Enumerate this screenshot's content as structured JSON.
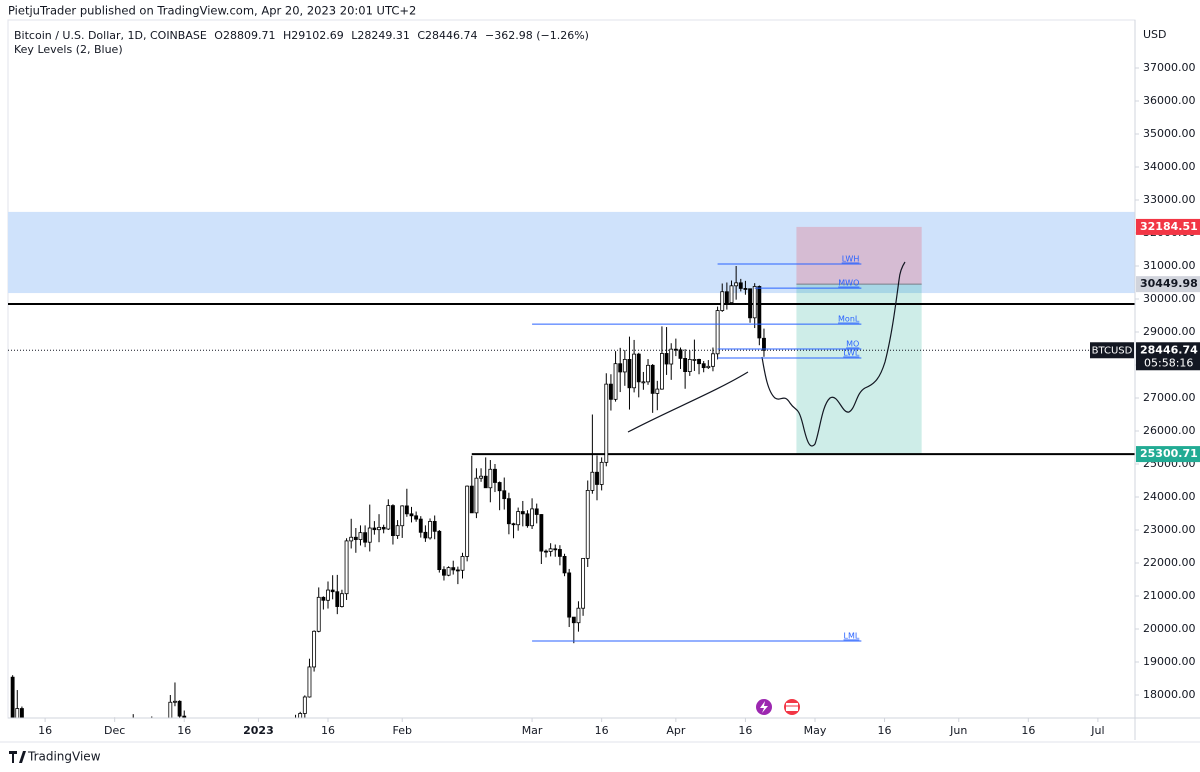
{
  "header": "PietjuTrader published on TradingView.com, Apr 20, 2023 20:01 UTC+2",
  "footer": "TradingView",
  "chart_data": {
    "type": "candlestick",
    "symbol": "Bitcoin / U.S. Dollar, 1D, COINBASE",
    "legend_values": [
      "O28809.71",
      "H29102.69",
      "L28249.31",
      "C28446.74",
      "−362.98 (−1.26%)"
    ],
    "indicator": "Key Levels (2, Blue)",
    "currency": "USD",
    "ticker": "BTCUSD",
    "countdown": "05:58:16",
    "up_color": "#ffffff",
    "down_color": "#000000",
    "wick_color": "#000000",
    "x": [
      "2022-11-09",
      "2022-11-10",
      "2022-11-11",
      "2022-11-12",
      "2022-11-13",
      "2022-11-14",
      "2022-11-15",
      "2022-11-16",
      "2022-11-17",
      "2022-11-18",
      "2022-11-19",
      "2022-11-20",
      "2022-11-21",
      "2022-11-22",
      "2022-11-23",
      "2022-11-24",
      "2022-11-25",
      "2022-11-26",
      "2022-11-27",
      "2022-11-28",
      "2022-11-29",
      "2022-11-30",
      "2022-12-01",
      "2022-12-02",
      "2022-12-03",
      "2022-12-04",
      "2022-12-05",
      "2022-12-06",
      "2022-12-07",
      "2022-12-08",
      "2022-12-09",
      "2022-12-10",
      "2022-12-11",
      "2022-12-12",
      "2022-12-13",
      "2022-12-14",
      "2022-12-15",
      "2022-12-16",
      "2022-12-17",
      "2022-12-18",
      "2022-12-19",
      "2022-12-20",
      "2022-12-21",
      "2022-12-22",
      "2022-12-23",
      "2022-12-24",
      "2022-12-25",
      "2022-12-26",
      "2022-12-27",
      "2022-12-28",
      "2022-12-29",
      "2022-12-30",
      "2022-12-31",
      "2023-01-01",
      "2023-01-02",
      "2023-01-03",
      "2023-01-04",
      "2023-01-05",
      "2023-01-06",
      "2023-01-07",
      "2023-01-08",
      "2023-01-09",
      "2023-01-10",
      "2023-01-11",
      "2023-01-12",
      "2023-01-13",
      "2023-01-14",
      "2023-01-15",
      "2023-01-16",
      "2023-01-17",
      "2023-01-18",
      "2023-01-19",
      "2023-01-20",
      "2023-01-21",
      "2023-01-22",
      "2023-01-23",
      "2023-01-24",
      "2023-01-25",
      "2023-01-26",
      "2023-01-27",
      "2023-01-28",
      "2023-01-29",
      "2023-01-30",
      "2023-01-31",
      "2023-02-01",
      "2023-02-02",
      "2023-02-03",
      "2023-02-04",
      "2023-02-05",
      "2023-02-06",
      "2023-02-07",
      "2023-02-08",
      "2023-02-09",
      "2023-02-10",
      "2023-02-11",
      "2023-02-12",
      "2023-02-13",
      "2023-02-14",
      "2023-02-15",
      "2023-02-16",
      "2023-02-17",
      "2023-02-18",
      "2023-02-19",
      "2023-02-20",
      "2023-02-21",
      "2023-02-22",
      "2023-02-23",
      "2023-02-24",
      "2023-02-25",
      "2023-02-26",
      "2023-02-27",
      "2023-02-28",
      "2023-03-01",
      "2023-03-02",
      "2023-03-03",
      "2023-03-04",
      "2023-03-05",
      "2023-03-06",
      "2023-03-07",
      "2023-03-08",
      "2023-03-09",
      "2023-03-10",
      "2023-03-11",
      "2023-03-12",
      "2023-03-13",
      "2023-03-14",
      "2023-03-15",
      "2023-03-16",
      "2023-03-17",
      "2023-03-18",
      "2023-03-19",
      "2023-03-20",
      "2023-03-21",
      "2023-03-22",
      "2023-03-23",
      "2023-03-24",
      "2023-03-25",
      "2023-03-26",
      "2023-03-27",
      "2023-03-28",
      "2023-03-29",
      "2023-03-30",
      "2023-03-31",
      "2023-04-01",
      "2023-04-02",
      "2023-04-03",
      "2023-04-04",
      "2023-04-05",
      "2023-04-06",
      "2023-04-07",
      "2023-04-08",
      "2023-04-09",
      "2023-04-10",
      "2023-04-11",
      "2023-04-12",
      "2023-04-13",
      "2023-04-14",
      "2023-04-15",
      "2023-04-16",
      "2023-04-17",
      "2023-04-18",
      "2023-04-19",
      "2023-04-20"
    ],
    "open": [
      18540,
      15880,
      17590,
      17070,
      16810,
      16330,
      16620,
      16900,
      16660,
      16690,
      16700,
      16700,
      16280,
      15780,
      16230,
      16600,
      16600,
      16520,
      16460,
      16440,
      16220,
      16440,
      17160,
      16980,
      17090,
      16890,
      17110,
      16970,
      17090,
      16840,
      17220,
      17130,
      17130,
      17090,
      17210,
      17780,
      17810,
      17360,
      16630,
      16780,
      16740,
      16440,
      16900,
      16820,
      16820,
      16780,
      16840,
      16830,
      16920,
      16710,
      16550,
      16630,
      16600,
      16530,
      16610,
      16670,
      16670,
      16850,
      16830,
      16950,
      16940,
      17120,
      17180,
      17440,
      17940,
      18850,
      19930,
      20960,
      20870,
      21180,
      21130,
      20680,
      21070,
      22670,
      22780,
      22710,
      22920,
      22630,
      23060,
      23010,
      23080,
      23030,
      23740,
      22830,
      23130,
      23730,
      23490,
      23430,
      23330,
      22930,
      22760,
      23260,
      22960,
      21800,
      21630,
      21860,
      21790,
      21780,
      22200,
      24330,
      23520,
      24570,
      24630,
      24280,
      24840,
      24440,
      24190,
      23950,
      23190,
      23160,
      23560,
      23490,
      23130,
      23640,
      23470,
      22360,
      22350,
      22430,
      22410,
      22200,
      21700,
      20360,
      20190,
      20630,
      22140,
      24200,
      24750,
      24380,
      25050,
      27420,
      26960,
      28040,
      27790,
      28170,
      27310,
      28330,
      27490,
      27490,
      27990,
      27140,
      27270,
      28350,
      28030,
      28480,
      28460,
      28200,
      27800,
      28170,
      28170,
      28040,
      27920,
      27960,
      28340,
      29650,
      30220,
      29890,
      30400,
      30490,
      30320,
      30310,
      29430,
      30380,
      28809.71
    ],
    "high": [
      18600,
      18150,
      17650,
      17090,
      16950,
      17190,
      17130,
      17000,
      16790,
      17000,
      16790,
      16740,
      16300,
      16280,
      16700,
      16810,
      16610,
      16700,
      16590,
      16480,
      16530,
      17250,
      17320,
      17110,
      17160,
      17200,
      17420,
      17110,
      17140,
      17300,
      17350,
      17220,
      17270,
      17240,
      18000,
      18380,
      17840,
      17530,
      16800,
      16860,
      16810,
      17030,
      16900,
      16860,
      16940,
      16860,
      16860,
      16940,
      16970,
      16780,
      16660,
      16640,
      16650,
      16630,
      16760,
      16780,
      16990,
      16880,
      17000,
      16970,
      17170,
      17400,
      17490,
      17990,
      19100,
      19960,
      21260,
      20990,
      21440,
      21630,
      21640,
      21190,
      22750,
      23340,
      23060,
      23140,
      23140,
      23770,
      23270,
      23480,
      23160,
      23930,
      23780,
      23300,
      23750,
      24250,
      23700,
      23560,
      23420,
      23140,
      23350,
      23440,
      23000,
      21900,
      21900,
      22070,
      21890,
      22310,
      24350,
      25250,
      24870,
      24870,
      25200,
      25120,
      25000,
      24470,
      24590,
      24130,
      23220,
      23680,
      23880,
      23600,
      23960,
      23800,
      23480,
      22410,
      22600,
      22560,
      22540,
      22280,
      21820,
      20360,
      20840,
      22140,
      24500,
      26500,
      25260,
      25200,
      27750,
      27720,
      28420,
      28520,
      28450,
      28860,
      28760,
      28370,
      27790,
      28180,
      28030,
      27520,
      29170,
      29150,
      28660,
      28800,
      28530,
      28480,
      28440,
      28770,
      28190,
      28120,
      28150,
      28530,
      29770,
      30470,
      30500,
      30560,
      31000,
      30610,
      30550,
      30320,
      30480,
      30410,
      29102.69
    ],
    "low": [
      15680,
      15770,
      16370,
      16680,
      16270,
      15820,
      16560,
      16400,
      16400,
      16550,
      16580,
      16200,
      15480,
      15620,
      16160,
      16460,
      16350,
      16420,
      16400,
      16000,
      16110,
      16430,
      16870,
      16790,
      16860,
      16880,
      16880,
      16910,
      16690,
      16740,
      17090,
      17090,
      17070,
      16870,
      17090,
      17660,
      17290,
      16530,
      16580,
      16700,
      16260,
      16400,
      16720,
      16560,
      16770,
      16760,
      16730,
      16800,
      16600,
      16470,
      16490,
      16340,
      16490,
      16500,
      16550,
      16600,
      16650,
      16760,
      16680,
      16900,
      16910,
      17100,
      17150,
      17310,
      17920,
      18710,
      19900,
      20590,
      20620,
      20900,
      20450,
      20650,
      20880,
      22440,
      22310,
      22530,
      22480,
      22350,
      22860,
      22630,
      22900,
      23000,
      22560,
      22730,
      22760,
      23400,
      23230,
      23250,
      22770,
      22640,
      22710,
      22720,
      21710,
      21470,
      21600,
      21650,
      21360,
      21530,
      22050,
      23520,
      23360,
      24460,
      24280,
      23840,
      24150,
      23600,
      23620,
      22870,
      22750,
      22980,
      23110,
      23070,
      23030,
      23200,
      21970,
      22170,
      22200,
      22190,
      21930,
      21600,
      20060,
      19570,
      19920,
      20400,
      21880,
      24100,
      23900,
      24200,
      24930,
      26620,
      26890,
      27180,
      27370,
      26650,
      27170,
      27020,
      27250,
      27400,
      26550,
      26630,
      27250,
      27700,
      27550,
      28270,
      27880,
      27280,
      27670,
      27820,
      27720,
      27780,
      27880,
      27810,
      28170,
      29610,
      29680,
      29870,
      29980,
      30230,
      30130,
      29280,
      29120,
      28600,
      28249.31
    ],
    "close": [
      15880,
      17590,
      17070,
      16810,
      16330,
      16620,
      16900,
      16660,
      16690,
      16700,
      16700,
      16280,
      15780,
      16230,
      16600,
      16600,
      16520,
      16460,
      16440,
      16220,
      16440,
      17160,
      16980,
      17090,
      16890,
      17110,
      16970,
      17090,
      16840,
      17220,
      17130,
      17130,
      17090,
      17210,
      17780,
      17810,
      17360,
      16630,
      16780,
      16740,
      16440,
      16900,
      16820,
      16820,
      16780,
      16840,
      16830,
      16920,
      16710,
      16550,
      16630,
      16600,
      16530,
      16610,
      16670,
      16670,
      16850,
      16830,
      16950,
      16940,
      17120,
      17180,
      17440,
      17940,
      18850,
      19930,
      20960,
      20870,
      21180,
      21130,
      20680,
      21070,
      22670,
      22780,
      22710,
      22920,
      22630,
      23060,
      23010,
      23080,
      23030,
      23740,
      22830,
      23130,
      23730,
      23490,
      23430,
      23330,
      22930,
      22760,
      23260,
      22960,
      21800,
      21630,
      21860,
      21790,
      21780,
      22200,
      24330,
      23520,
      24570,
      24630,
      24280,
      24840,
      24440,
      24190,
      23950,
      23190,
      23160,
      23560,
      23490,
      23130,
      23640,
      23470,
      22360,
      22350,
      22430,
      22410,
      22200,
      21700,
      20360,
      20190,
      20630,
      22140,
      24200,
      24750,
      24380,
      25050,
      27420,
      26960,
      28040,
      27790,
      28170,
      27310,
      28330,
      27490,
      27490,
      27990,
      27140,
      27270,
      28350,
      28030,
      28480,
      28460,
      28200,
      27800,
      28170,
      28170,
      28040,
      27920,
      27960,
      28340,
      29650,
      30220,
      29890,
      30400,
      30490,
      30320,
      30310,
      29430,
      30380,
      28820,
      28446.74
    ],
    "xlim": [
      "2022-11-08",
      "2023-07-09"
    ],
    "xticks": [
      {
        "value": "2022-11-16",
        "label": "16"
      },
      {
        "value": "2022-12-01",
        "label": "Dec"
      },
      {
        "value": "2022-12-16",
        "label": "16"
      },
      {
        "value": "2023-01-01",
        "label": "2023"
      },
      {
        "value": "2023-01-16",
        "label": "16"
      },
      {
        "value": "2023-02-01",
        "label": "Feb"
      },
      {
        "value": "2023-03-01",
        "label": "Mar"
      },
      {
        "value": "2023-03-16",
        "label": "16"
      },
      {
        "value": "2023-04-01",
        "label": "Apr"
      },
      {
        "value": "2023-04-16",
        "label": "16"
      },
      {
        "value": "2023-05-01",
        "label": "May"
      },
      {
        "value": "2023-05-16",
        "label": "16"
      },
      {
        "value": "2023-06-01",
        "label": "Jun"
      },
      {
        "value": "2023-06-16",
        "label": "16"
      },
      {
        "value": "2023-07-01",
        "label": "Jul"
      }
    ],
    "ylim": [
      17303,
      38455
    ],
    "yticks": [
      {
        "value": 18000,
        "label": "18000.00"
      },
      {
        "value": 19000,
        "label": "19000.00"
      },
      {
        "value": 20000,
        "label": "20000.00"
      },
      {
        "value": 21000,
        "label": "21000.00"
      },
      {
        "value": 22000,
        "label": "22000.00"
      },
      {
        "value": 23000,
        "label": "23000.00"
      },
      {
        "value": 24000,
        "label": "24000.00"
      },
      {
        "value": 25000,
        "label": "25000.00"
      },
      {
        "value": 26000,
        "label": "26000.00"
      },
      {
        "value": 27000,
        "label": "27000.00"
      },
      {
        "value": 28000,
        "label": "28000.00"
      },
      {
        "value": 29000,
        "label": "29000.00"
      },
      {
        "value": 30000,
        "label": "30000.00"
      },
      {
        "value": 31000,
        "label": "31000.00"
      },
      {
        "value": 32000,
        "label": "32000.00"
      },
      {
        "value": 33000,
        "label": "33000.00"
      },
      {
        "value": 34000,
        "label": "34000.00"
      },
      {
        "value": 35000,
        "label": "35000.00"
      },
      {
        "value": 36000,
        "label": "36000.00"
      },
      {
        "value": 37000,
        "label": "37000.00"
      }
    ],
    "zone": {
      "low": 30180,
      "high": 32640,
      "color": "#cfe2fb"
    },
    "levels": [
      {
        "value": 29850,
        "from": "2022-11-08"
      },
      {
        "value": 25300.71,
        "from": "2023-02-16"
      }
    ],
    "key_levels": [
      {
        "name": "LWH",
        "value": 31060,
        "from": "2023-04-10"
      },
      {
        "name": "MWO",
        "value": 30330,
        "from": "2023-04-18"
      },
      {
        "name": "MonL",
        "value": 29240,
        "from": "2023-03-01"
      },
      {
        "name": "MO",
        "value": 28485,
        "from": "2023-04-10"
      },
      {
        "name": "LWL",
        "value": 28212,
        "from": "2023-04-10"
      },
      {
        "name": "LML",
        "value": 19636,
        "from": "2023-03-01"
      }
    ],
    "key_level_color": "#2962ff",
    "key_level_to": "2023-05-11",
    "position": {
      "entry": 30449.98,
      "stop": 32184.51,
      "target": 25300.71,
      "from": "2023-04-27",
      "to": "2023-05-24",
      "stop_color": "#f23645",
      "entry_color": "#d1d4dc",
      "target_color": "#22ab94"
    }
  }
}
